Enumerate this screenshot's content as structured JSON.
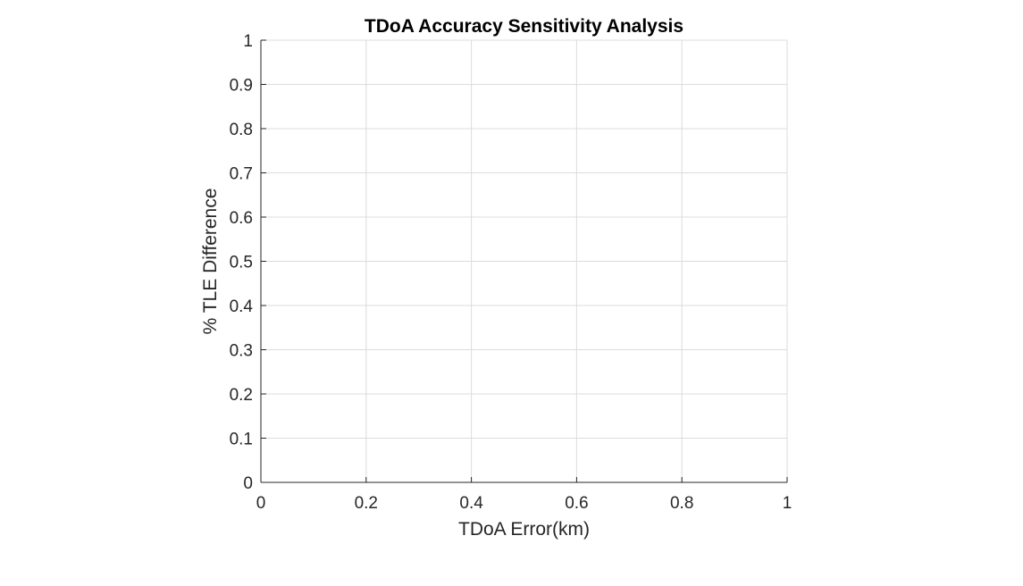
{
  "chart_data": {
    "type": "line",
    "title": "TDoA Accuracy Sensitivity Analysis",
    "xlabel": "TDoA Error(km)",
    "ylabel": "% TLE Difference",
    "xlim": [
      0,
      1
    ],
    "ylim": [
      0,
      1
    ],
    "xticks": [
      0,
      0.2,
      0.4,
      0.6,
      0.8,
      1
    ],
    "xtick_labels": [
      "0",
      "0.2",
      "0.4",
      "0.6",
      "0.8",
      "1"
    ],
    "yticks": [
      0,
      0.1,
      0.2,
      0.3,
      0.4,
      0.5,
      0.6,
      0.7,
      0.8,
      0.9,
      1
    ],
    "ytick_labels": [
      "0",
      "0.1",
      "0.2",
      "0.3",
      "0.4",
      "0.5",
      "0.6",
      "0.7",
      "0.8",
      "0.9",
      "1"
    ],
    "grid": true,
    "series": [],
    "colors": {
      "grid": "#dcdcdc",
      "axis": "#262626",
      "background": "#ffffff"
    }
  }
}
